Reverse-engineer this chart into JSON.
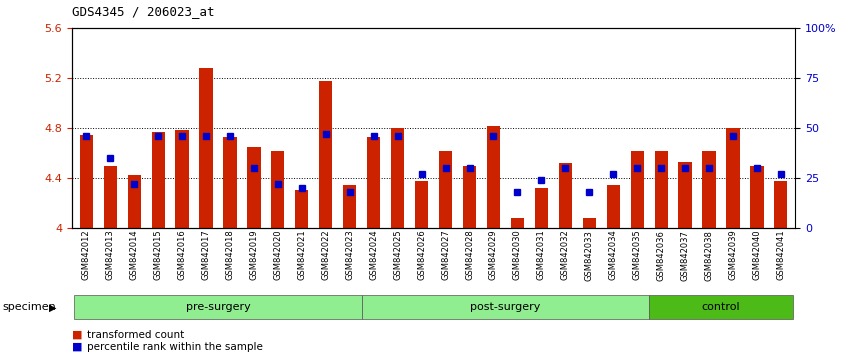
{
  "title": "GDS4345 / 206023_at",
  "samples": [
    "GSM842012",
    "GSM842013",
    "GSM842014",
    "GSM842015",
    "GSM842016",
    "GSM842017",
    "GSM842018",
    "GSM842019",
    "GSM842020",
    "GSM842021",
    "GSM842022",
    "GSM842023",
    "GSM842024",
    "GSM842025",
    "GSM842026",
    "GSM842027",
    "GSM842028",
    "GSM842029",
    "GSM842030",
    "GSM842031",
    "GSM842032",
    "GSM842033",
    "GSM842034",
    "GSM842035",
    "GSM842036",
    "GSM842037",
    "GSM842038",
    "GSM842039",
    "GSM842040",
    "GSM842041"
  ],
  "red_values": [
    4.75,
    4.5,
    4.43,
    4.77,
    4.79,
    5.28,
    4.73,
    4.65,
    4.62,
    4.31,
    5.18,
    4.35,
    4.73,
    4.8,
    4.38,
    4.62,
    4.5,
    4.82,
    4.08,
    4.32,
    4.52,
    4.08,
    4.35,
    4.62,
    4.62,
    4.53,
    4.62,
    4.8,
    4.5,
    4.38
  ],
  "blue_values": [
    46,
    35,
    22,
    46,
    46,
    46,
    46,
    30,
    22,
    20,
    47,
    18,
    46,
    46,
    27,
    30,
    30,
    46,
    18,
    24,
    30,
    18,
    27,
    30,
    30,
    30,
    30,
    46,
    30,
    27
  ],
  "ylim_left": [
    4.0,
    5.6
  ],
  "ylim_right": [
    0,
    100
  ],
  "yticks_left": [
    4.0,
    4.4,
    4.8,
    5.2,
    5.6
  ],
  "yticks_right": [
    0,
    25,
    50,
    75,
    100
  ],
  "ytick_labels_right": [
    "0",
    "25",
    "50",
    "75",
    "100%"
  ],
  "ytick_labels_left": [
    "4",
    "4.4",
    "4.8",
    "5.2",
    "5.6"
  ],
  "bar_color": "#CC2200",
  "dot_color": "#0000CC",
  "bg_color": "#FFFFFF",
  "bar_base": 4.0,
  "groups": [
    {
      "label": "pre-surgery",
      "start": 0,
      "end": 12,
      "color": "#90EE90"
    },
    {
      "label": "post-surgery",
      "start": 12,
      "end": 24,
      "color": "#90EE90"
    },
    {
      "label": "control",
      "start": 24,
      "end": 30,
      "color": "#4CBB17"
    }
  ],
  "legend_items": [
    "transformed count",
    "percentile rank within the sample"
  ],
  "legend_colors": [
    "#CC2200",
    "#0000CC"
  ]
}
